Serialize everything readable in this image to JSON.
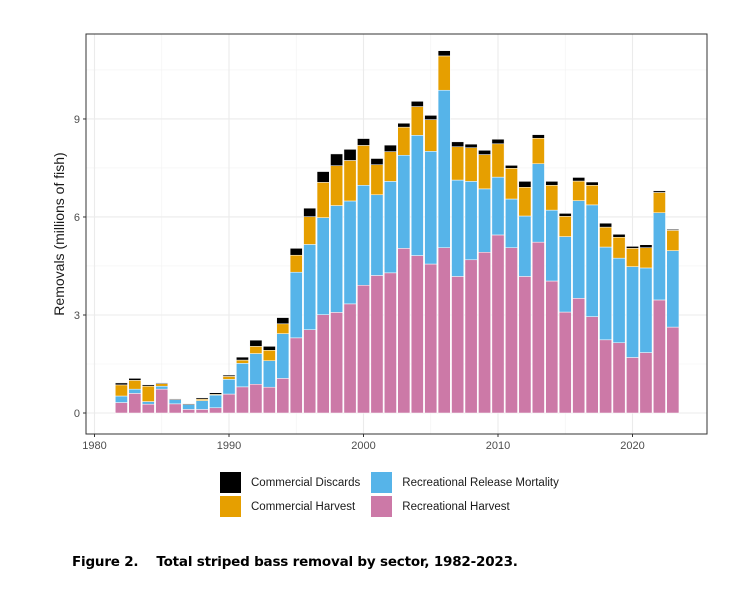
{
  "chart_data": {
    "type": "bar",
    "stacked": true,
    "title": "",
    "xlabel": "",
    "ylabel": "Removals (millions of fish)",
    "xlim": [
      1980,
      2025
    ],
    "ylim": [
      -0.5,
      11.5
    ],
    "x_ticks": [
      1980,
      1990,
      2000,
      2010,
      2020
    ],
    "y_ticks": [
      0,
      3,
      6,
      9
    ],
    "grid": true,
    "legend_position": "bottom",
    "categories": [
      1982,
      1983,
      1984,
      1985,
      1986,
      1987,
      1988,
      1989,
      1990,
      1991,
      1992,
      1993,
      1994,
      1995,
      1996,
      1997,
      1998,
      1999,
      2000,
      2001,
      2002,
      2003,
      2004,
      2005,
      2006,
      2007,
      2008,
      2009,
      2010,
      2011,
      2012,
      2013,
      2014,
      2015,
      2016,
      2017,
      2018,
      2019,
      2020,
      2021,
      2022,
      2023
    ],
    "series": [
      {
        "name": "Recreational Harvest",
        "color": "#CC79A7",
        "values": [
          0.32,
          0.6,
          0.27,
          0.73,
          0.28,
          0.11,
          0.11,
          0.16,
          0.58,
          0.8,
          0.88,
          0.79,
          1.06,
          2.3,
          2.55,
          3.01,
          3.08,
          3.34,
          3.91,
          4.21,
          4.29,
          5.04,
          4.82,
          4.56,
          5.06,
          4.18,
          4.69,
          4.92,
          5.45,
          5.06,
          4.18,
          5.23,
          4.04,
          3.09,
          3.51,
          2.95,
          2.24,
          2.15,
          1.7,
          1.85,
          3.46,
          2.63
        ]
      },
      {
        "name": "Recreational Release Mortality",
        "color": "#56B4E9",
        "values": [
          0.2,
          0.13,
          0.08,
          0.09,
          0.13,
          0.16,
          0.27,
          0.4,
          0.45,
          0.72,
          0.94,
          0.81,
          1.37,
          2.01,
          2.61,
          2.97,
          3.27,
          3.15,
          3.06,
          2.47,
          2.8,
          2.85,
          3.68,
          3.45,
          4.82,
          2.95,
          2.4,
          1.94,
          1.77,
          1.49,
          1.85,
          2.4,
          2.17,
          2.31,
          2.99,
          3.42,
          2.84,
          2.59,
          2.78,
          2.59,
          2.67,
          2.34
        ]
      },
      {
        "name": "Commercial Harvest",
        "color": "#E69F00",
        "values": [
          0.34,
          0.27,
          0.47,
          0.08,
          0.0,
          0.0,
          0.04,
          0.01,
          0.09,
          0.1,
          0.22,
          0.32,
          0.3,
          0.52,
          0.85,
          1.08,
          1.22,
          1.24,
          1.22,
          0.92,
          0.91,
          0.86,
          0.88,
          0.97,
          1.05,
          1.02,
          1.03,
          1.05,
          1.02,
          0.94,
          0.88,
          0.78,
          0.76,
          0.62,
          0.6,
          0.6,
          0.61,
          0.64,
          0.56,
          0.62,
          0.62,
          0.62
        ]
      },
      {
        "name": "Commercial Discards",
        "color": "#000000",
        "values": [
          0.06,
          0.06,
          0.04,
          0.02,
          0.02,
          0.01,
          0.04,
          0.05,
          0.04,
          0.09,
          0.19,
          0.12,
          0.19,
          0.21,
          0.26,
          0.33,
          0.36,
          0.34,
          0.21,
          0.19,
          0.2,
          0.12,
          0.16,
          0.13,
          0.16,
          0.15,
          0.11,
          0.13,
          0.14,
          0.09,
          0.18,
          0.11,
          0.12,
          0.09,
          0.11,
          0.1,
          0.12,
          0.09,
          0.06,
          0.09,
          0.05,
          0.03
        ]
      }
    ],
    "legend": [
      {
        "label": "Commercial Discards",
        "color": "#000000"
      },
      {
        "label": "Recreational Release Mortality",
        "color": "#56B4E9"
      },
      {
        "label": "Commercial Harvest",
        "color": "#E69F00"
      },
      {
        "label": "Recreational Harvest",
        "color": "#CC79A7"
      }
    ]
  },
  "caption": "Figure 2.    Total striped bass removal by sector, 1982-2023."
}
